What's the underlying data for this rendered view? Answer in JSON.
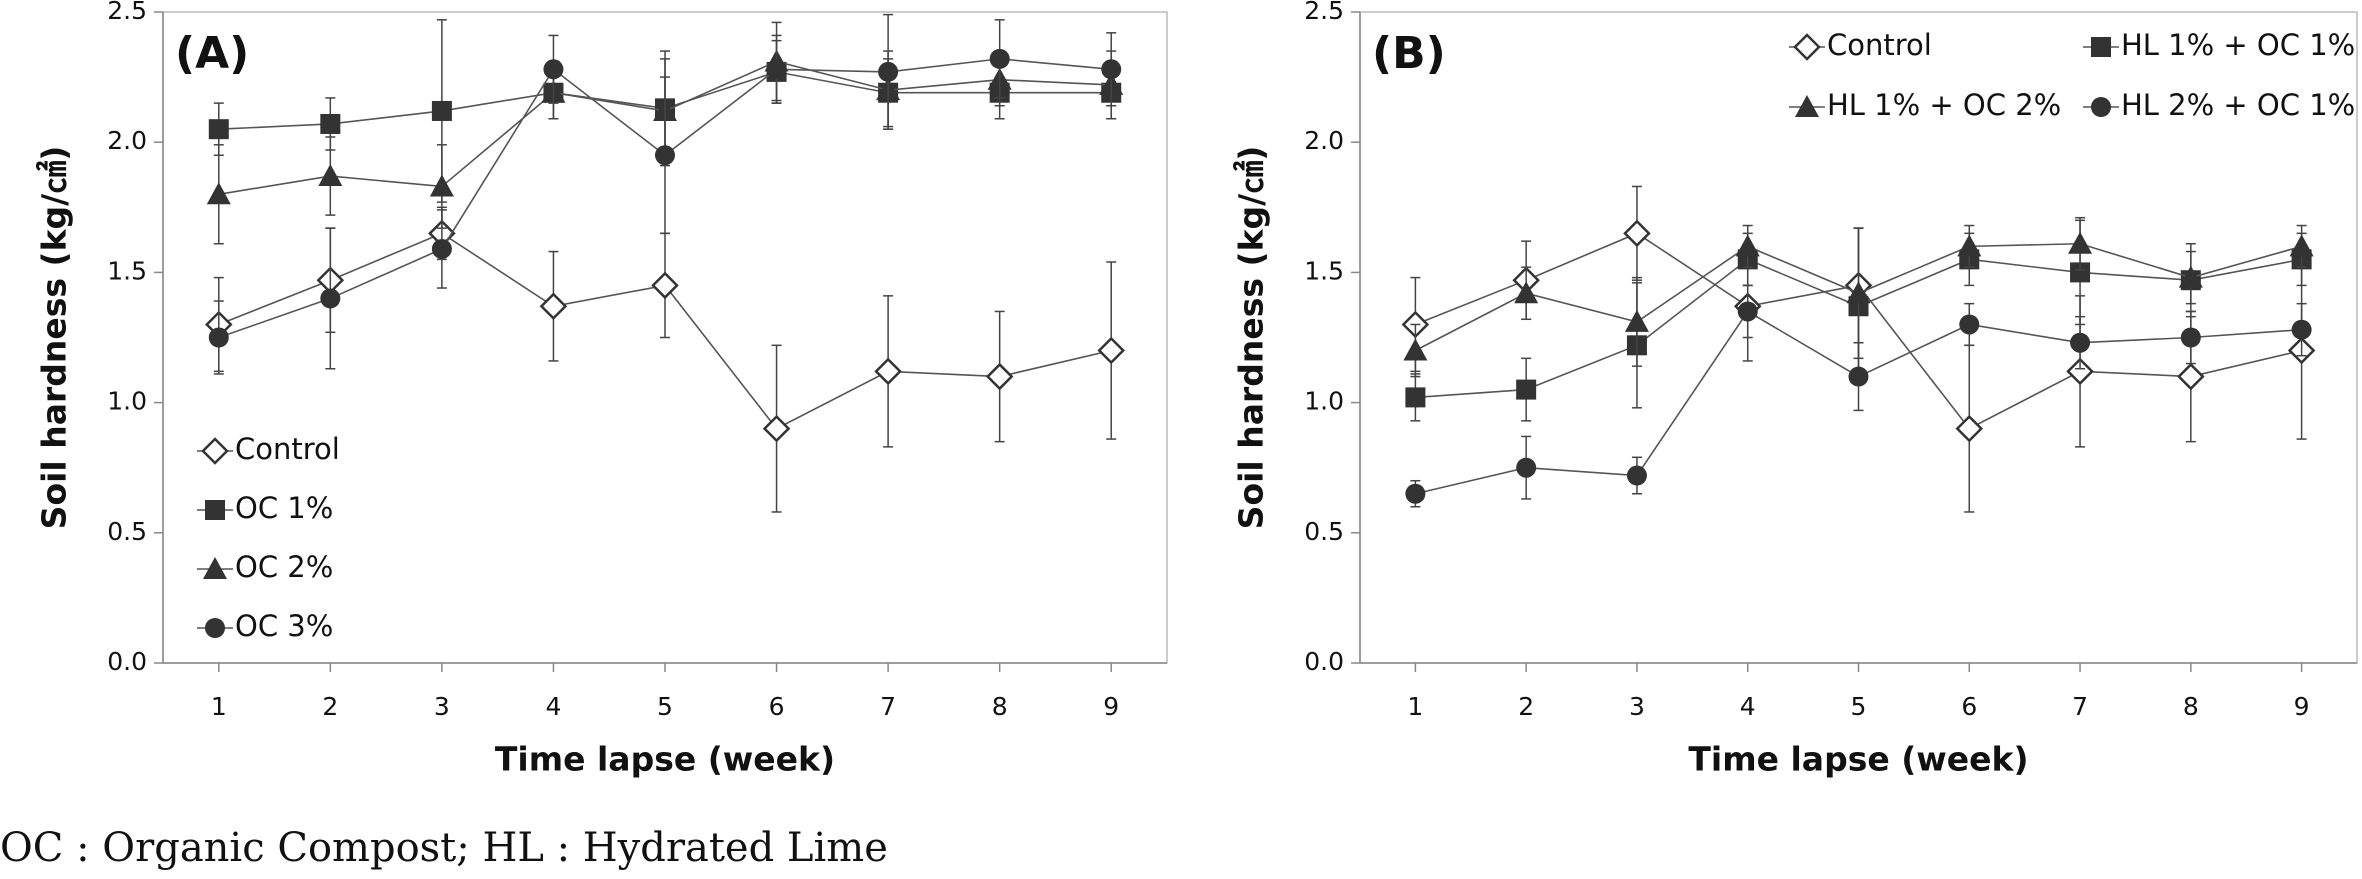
{
  "chart_data": [
    {
      "type": "line",
      "panel_label": "(A)",
      "ylabel": "Soil hardness (kg/㎠)",
      "xlabel": "Time lapse (week)",
      "x": [
        1,
        2,
        3,
        4,
        5,
        6,
        7,
        8,
        9
      ],
      "xlim": [
        0.5,
        9.5
      ],
      "xticks": [
        1,
        2,
        3,
        4,
        5,
        6,
        7,
        8,
        9
      ],
      "ylim": [
        0,
        2.5
      ],
      "yticks": [
        {
          "value": 0,
          "label": "0.0"
        },
        0.5,
        {
          "value": 1,
          "label": "1.0"
        },
        1.5,
        {
          "value": 2,
          "label": "2.0"
        },
        2.5
      ],
      "legend": "lower left",
      "series": [
        {
          "name": "Control",
          "color": "#333333",
          "marker": "diamond-open",
          "values": [
            1.3,
            1.47,
            1.65,
            1.37,
            1.45,
            0.9,
            1.12,
            1.1,
            1.2
          ],
          "errors": [
            0.18,
            0.2,
            0.1,
            0.21,
            0.2,
            0.32,
            0.29,
            0.25,
            0.34
          ]
        },
        {
          "name": "OC 1%",
          "color": "#333333",
          "marker": "square",
          "values": [
            2.05,
            2.07,
            2.12,
            2.19,
            2.13,
            2.27,
            2.19,
            2.19,
            2.19
          ],
          "errors": [
            0.1,
            0.1,
            0.35,
            0.1,
            0.22,
            0.12,
            0.13,
            0.1,
            0.1
          ]
        },
        {
          "name": "OC 2%",
          "color": "#333333",
          "marker": "triangle",
          "values": [
            1.8,
            1.87,
            1.83,
            2.19,
            2.12,
            2.31,
            2.2,
            2.24,
            2.22
          ],
          "errors": [
            0.19,
            0.15,
            0.16,
            0.1,
            0.2,
            0.15,
            0.15,
            0.1,
            0.13
          ]
        },
        {
          "name": "OC 3%",
          "color": "#333333",
          "marker": "circle",
          "values": [
            1.25,
            1.4,
            1.59,
            2.28,
            1.95,
            2.28,
            2.27,
            2.32,
            2.28
          ],
          "errors": [
            0.14,
            0.27,
            0.15,
            0.13,
            0.3,
            0.13,
            0.22,
            0.15,
            0.14
          ]
        }
      ]
    },
    {
      "type": "line",
      "panel_label": "(B)",
      "ylabel": "Soil hardness (kg/㎠)",
      "xlabel": "Time lapse (week)",
      "x": [
        1,
        2,
        3,
        4,
        5,
        6,
        7,
        8,
        9
      ],
      "xlim": [
        0.5,
        9.5
      ],
      "xticks": [
        1,
        2,
        3,
        4,
        5,
        6,
        7,
        8,
        9
      ],
      "ylim": [
        0,
        2.5
      ],
      "yticks": [
        {
          "value": 0,
          "label": "0.0"
        },
        0.5,
        {
          "value": 1,
          "label": "1.0"
        },
        1.5,
        {
          "value": 2,
          "label": "2.0"
        },
        2.5
      ],
      "legend": "upper right",
      "series": [
        {
          "name": "Control",
          "color": "#333333",
          "marker": "diamond-open",
          "values": [
            1.3,
            1.47,
            1.65,
            1.37,
            1.45,
            0.9,
            1.12,
            1.1,
            1.2
          ],
          "errors": [
            0.18,
            0.15,
            0.18,
            0.21,
            0.22,
            0.32,
            0.29,
            0.25,
            0.34
          ]
        },
        {
          "name": "HL 1% + OC 1%",
          "color": "#333333",
          "marker": "square",
          "values": [
            1.02,
            1.05,
            1.22,
            1.55,
            1.37,
            1.55,
            1.5,
            1.47,
            1.55
          ],
          "errors": [
            0.09,
            0.12,
            0.24,
            0.1,
            0.3,
            0.1,
            0.2,
            0.14,
            0.1
          ]
        },
        {
          "name": "HL 1% + OC 2%",
          "color": "#333333",
          "marker": "triangle",
          "values": [
            1.2,
            1.42,
            1.31,
            1.6,
            1.42,
            1.6,
            1.61,
            1.48,
            1.6
          ],
          "errors": [
            0.1,
            0.1,
            0.17,
            0.08,
            0.25,
            0.08,
            0.1,
            0.1,
            0.08
          ]
        },
        {
          "name": "HL 2% + OC 1%",
          "color": "#333333",
          "marker": "circle",
          "values": [
            0.65,
            0.75,
            0.72,
            1.35,
            1.1,
            1.3,
            1.23,
            1.25,
            1.28
          ],
          "errors": [
            0.05,
            0.12,
            0.07,
            0.1,
            0.13,
            0.08,
            0.1,
            0.1,
            0.1
          ]
        }
      ]
    }
  ],
  "footnote": "OC : Organic Compost; HL : Hydrated Lime"
}
